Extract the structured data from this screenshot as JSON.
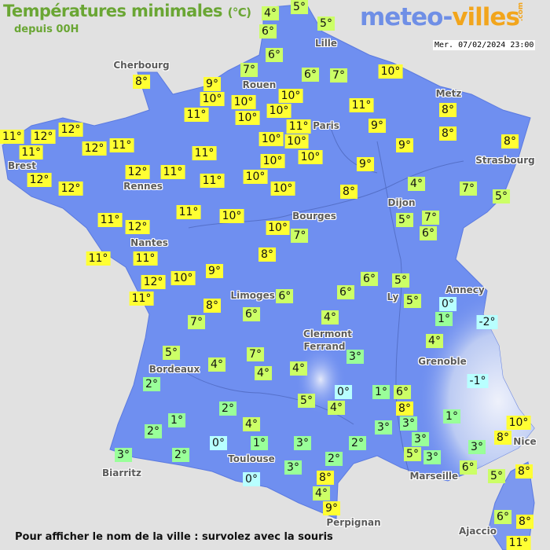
{
  "header": {
    "title": "Températures minimales",
    "unit": "(°C)",
    "subtitle": "depuis 00H",
    "logo_main": "meteo-",
    "logo_accent": "villes",
    "logo_suffix": ".com",
    "datetime": "Mer. 07/02/2024 23:00"
  },
  "colors": {
    "land": "#6f8ff0",
    "sea": "#e1e1e1",
    "temp_8_plus": "#ffff33",
    "temp_4_to_7": "#ccff66",
    "temp_1_to_3": "#99ff99",
    "temp_0_or_below": "#b8ffff",
    "title": "#6aa634"
  },
  "cities": [
    "Cherbourg",
    "Lille",
    "Rouen",
    "Metz",
    "Paris",
    "Brest",
    "Rennes",
    "Strasbourg",
    "Dijon",
    "Bourges",
    "Nantes",
    "Annecy",
    "Ly",
    "Limoges",
    "Clermont",
    "Ferrand",
    "Grenoble",
    "Bordeaux",
    "Nice",
    "Toulouse",
    "Marseille",
    "Biarritz",
    "Perpignan",
    "Ajaccio"
  ],
  "temperatures": [
    4,
    5,
    5,
    6,
    6,
    7,
    6,
    7,
    10,
    8,
    9,
    10,
    10,
    10,
    11,
    10,
    10,
    11,
    11,
    9,
    8,
    8,
    12,
    11,
    12,
    11,
    12,
    11,
    10,
    10,
    10,
    9,
    8,
    11,
    12,
    11,
    10,
    9,
    12,
    12,
    11,
    10,
    10,
    8,
    4,
    7,
    5,
    11,
    10,
    11,
    12,
    10,
    7,
    5,
    7,
    6,
    11,
    11,
    8,
    9,
    12,
    10,
    11,
    6,
    5,
    6,
    6,
    5,
    0,
    8,
    7,
    6,
    4,
    1,
    -2,
    5,
    7,
    4,
    4,
    4,
    3,
    4,
    -1,
    2,
    0,
    1,
    6,
    5,
    4,
    8,
    2,
    1,
    1,
    2,
    4,
    3,
    3,
    3,
    10,
    0,
    1,
    3,
    2,
    5,
    3,
    3,
    8,
    3,
    2,
    2,
    3,
    6,
    5,
    8,
    0,
    8,
    4,
    9,
    6,
    8,
    11
  ],
  "footer": "Pour afficher le nom de la ville : survolez avec la souris"
}
